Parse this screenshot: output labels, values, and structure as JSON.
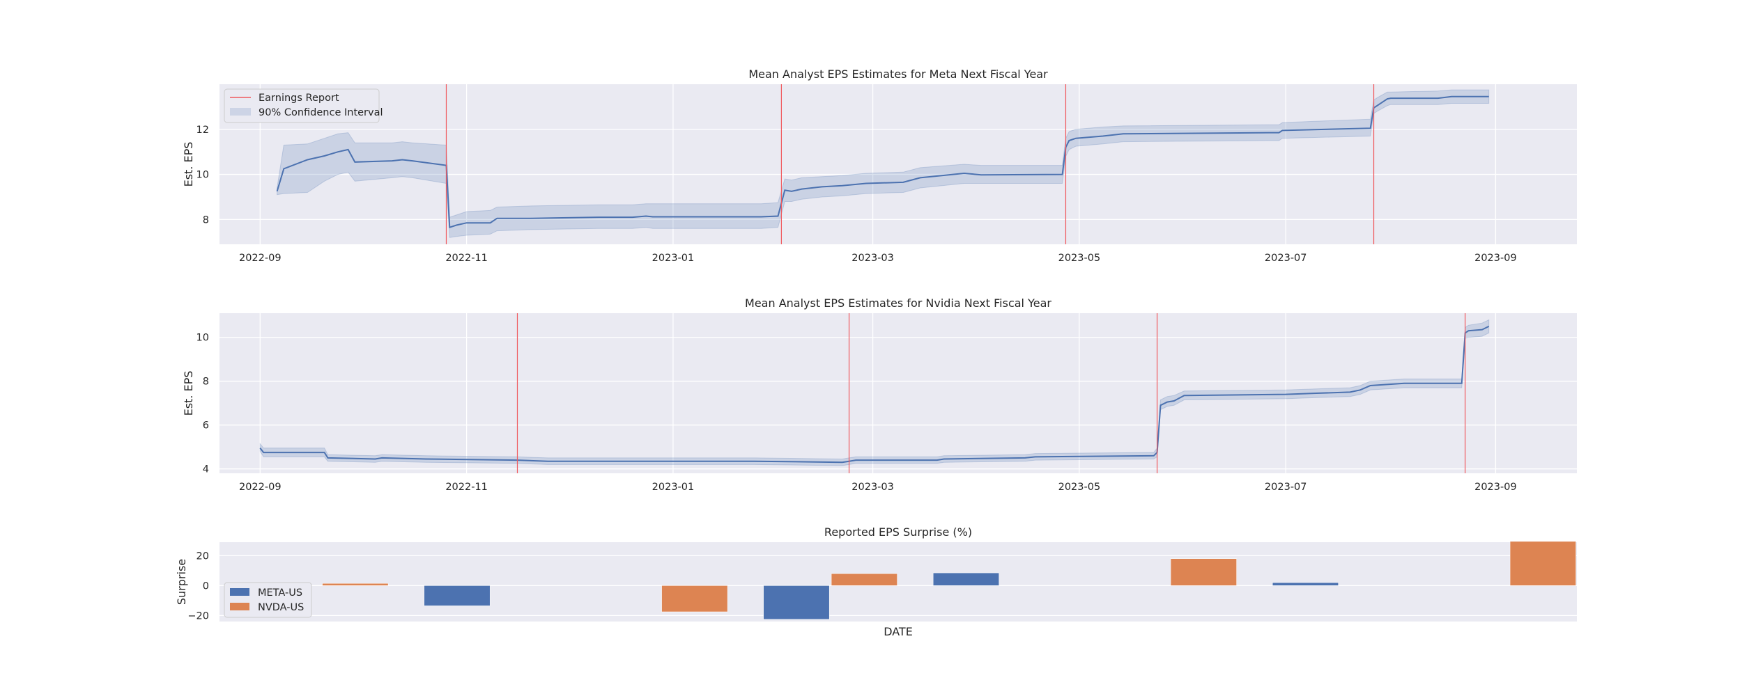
{
  "chart_data": [
    {
      "type": "line",
      "title": "Mean Analyst EPS Estimates for Meta Next Fiscal Year",
      "ylabel": "Est. EPS",
      "xlabel": "",
      "xlim": [
        "2022-08-20",
        "2023-09-25"
      ],
      "ylim": [
        6.9,
        14.0
      ],
      "x_ticks": [
        "2022-09",
        "2022-11",
        "2023-01",
        "2023-03",
        "2023-05",
        "2023-07",
        "2023-09"
      ],
      "y_ticks": [
        8,
        10,
        12
      ],
      "grid": true,
      "legend": {
        "placement": "top-left",
        "entries": [
          "Earnings Report",
          "90% Confidence Interval"
        ]
      },
      "earnings_reports": [
        "2022-10-26",
        "2023-02-02",
        "2023-04-27",
        "2023-07-27"
      ],
      "series": [
        {
          "name": "Mean EPS",
          "color": "#4c72b0",
          "x": [
            "2022-09-06",
            "2022-09-08",
            "2022-09-15",
            "2022-09-20",
            "2022-09-24",
            "2022-09-27",
            "2022-09-29",
            "2022-10-10",
            "2022-10-13",
            "2022-10-16",
            "2022-10-26",
            "2022-10-27",
            "2022-10-29",
            "2022-11-01",
            "2022-11-08",
            "2022-11-10",
            "2022-11-20",
            "2022-12-10",
            "2022-12-20",
            "2022-12-24",
            "2022-12-26",
            "2023-01-20",
            "2023-01-27",
            "2023-02-01",
            "2023-02-03",
            "2023-02-05",
            "2023-02-08",
            "2023-02-14",
            "2023-02-20",
            "2023-02-27",
            "2023-03-10",
            "2023-03-15",
            "2023-03-28",
            "2023-04-02",
            "2023-04-26",
            "2023-04-27",
            "2023-04-28",
            "2023-04-30",
            "2023-05-08",
            "2023-05-14",
            "2023-06-26",
            "2023-06-29",
            "2023-06-30",
            "2023-07-26",
            "2023-07-27",
            "2023-07-28",
            "2023-07-31",
            "2023-08-01",
            "2023-08-15",
            "2023-08-19",
            "2023-08-30"
          ],
          "values": [
            9.25,
            10.25,
            10.65,
            10.82,
            11.0,
            11.1,
            10.55,
            10.6,
            10.65,
            10.6,
            10.4,
            7.65,
            7.75,
            7.85,
            7.85,
            8.05,
            8.05,
            8.1,
            8.1,
            8.15,
            8.12,
            8.12,
            8.12,
            8.15,
            9.3,
            9.25,
            9.35,
            9.45,
            9.5,
            9.6,
            9.65,
            9.85,
            10.05,
            9.98,
            10.0,
            11.2,
            11.5,
            11.6,
            11.7,
            11.8,
            11.85,
            11.85,
            11.95,
            12.05,
            12.95,
            13.05,
            13.35,
            13.38,
            13.38,
            13.45,
            13.45
          ],
          "ci_lower": [
            9.1,
            9.15,
            9.2,
            9.7,
            10.0,
            10.1,
            9.7,
            9.85,
            9.9,
            9.85,
            9.6,
            7.2,
            7.25,
            7.3,
            7.35,
            7.5,
            7.55,
            7.6,
            7.6,
            7.65,
            7.6,
            7.6,
            7.6,
            7.65,
            8.8,
            8.8,
            8.9,
            9.0,
            9.05,
            9.15,
            9.2,
            9.4,
            9.6,
            9.6,
            9.6,
            10.8,
            11.1,
            11.25,
            11.35,
            11.45,
            11.5,
            11.5,
            11.6,
            11.7,
            12.7,
            12.8,
            13.05,
            13.1,
            13.1,
            13.15,
            13.15
          ],
          "ci_upper": [
            9.4,
            11.3,
            11.35,
            11.6,
            11.8,
            11.85,
            11.4,
            11.4,
            11.45,
            11.4,
            11.3,
            8.1,
            8.2,
            8.35,
            8.4,
            8.55,
            8.6,
            8.65,
            8.65,
            8.7,
            8.7,
            8.7,
            8.7,
            8.75,
            9.8,
            9.75,
            9.85,
            9.9,
            9.95,
            10.05,
            10.1,
            10.3,
            10.45,
            10.4,
            10.4,
            11.6,
            11.9,
            12.0,
            12.1,
            12.15,
            12.2,
            12.2,
            12.3,
            12.45,
            13.3,
            13.4,
            13.65,
            13.65,
            13.7,
            13.75,
            13.75
          ]
        }
      ]
    },
    {
      "type": "line",
      "title": "Mean Analyst EPS Estimates for Nvidia Next Fiscal Year",
      "ylabel": "Est. EPS",
      "xlabel": "",
      "xlim": [
        "2022-08-20",
        "2023-09-25"
      ],
      "ylim": [
        3.8,
        11.1
      ],
      "x_ticks": [
        "2022-09",
        "2022-11",
        "2023-01",
        "2023-03",
        "2023-05",
        "2023-07",
        "2023-09"
      ],
      "y_ticks": [
        4,
        6,
        8,
        10
      ],
      "grid": true,
      "earnings_reports": [
        "2022-11-16",
        "2023-02-22",
        "2023-05-24",
        "2023-08-23"
      ],
      "series": [
        {
          "name": "Mean EPS",
          "color": "#4c72b0",
          "x": [
            "2022-09-01",
            "2022-09-02",
            "2022-09-20",
            "2022-09-21",
            "2022-10-05",
            "2022-10-07",
            "2022-10-20",
            "2022-11-16",
            "2022-11-25",
            "2023-01-25",
            "2023-02-20",
            "2023-02-22",
            "2023-02-24",
            "2023-03-20",
            "2023-03-22",
            "2023-04-15",
            "2023-04-18",
            "2023-05-23",
            "2023-05-24",
            "2023-05-25",
            "2023-05-27",
            "2023-05-29",
            "2023-06-01",
            "2023-07-01",
            "2023-07-10",
            "2023-07-20",
            "2023-07-23",
            "2023-07-26",
            "2023-08-05",
            "2023-08-22",
            "2023-08-23",
            "2023-08-24",
            "2023-08-28",
            "2023-08-30"
          ],
          "values": [
            4.95,
            4.75,
            4.75,
            4.5,
            4.45,
            4.5,
            4.45,
            4.4,
            4.35,
            4.35,
            4.3,
            4.35,
            4.4,
            4.4,
            4.45,
            4.5,
            4.55,
            4.6,
            4.75,
            6.9,
            7.05,
            7.1,
            7.35,
            7.4,
            7.45,
            7.5,
            7.6,
            7.8,
            7.9,
            7.9,
            10.2,
            10.3,
            10.35,
            10.5
          ],
          "ci_lower": [
            4.8,
            4.55,
            4.55,
            4.35,
            4.3,
            4.35,
            4.3,
            4.25,
            4.2,
            4.2,
            4.15,
            4.2,
            4.25,
            4.25,
            4.3,
            4.35,
            4.4,
            4.45,
            4.55,
            6.7,
            6.85,
            6.9,
            7.15,
            7.2,
            7.25,
            7.3,
            7.4,
            7.6,
            7.7,
            7.7,
            9.95,
            10.0,
            10.05,
            10.2
          ],
          "ci_upper": [
            5.15,
            4.95,
            4.95,
            4.65,
            4.6,
            4.65,
            4.6,
            4.55,
            4.5,
            4.5,
            4.45,
            4.5,
            4.55,
            4.55,
            4.6,
            4.65,
            4.7,
            4.75,
            4.95,
            7.15,
            7.3,
            7.35,
            7.55,
            7.6,
            7.65,
            7.7,
            7.8,
            8.0,
            8.1,
            8.1,
            10.45,
            10.55,
            10.65,
            10.8
          ]
        }
      ]
    },
    {
      "type": "bar",
      "title": "Reported EPS Surprise (%)",
      "ylabel": "Surprise",
      "xlabel": "DATE",
      "ylim": [
        -24,
        29
      ],
      "y_ticks": [
        -20,
        0,
        20
      ],
      "grid": true,
      "legend": {
        "placement": "lower-left",
        "entries": [
          "META-US",
          "NVDA-US"
        ]
      },
      "bars": [
        {
          "series": "NVDA-US",
          "value": 1.5,
          "color": "#dd8452"
        },
        {
          "series": "META-US",
          "value": -13.5,
          "color": "#4c72b0"
        },
        {
          "series": "NVDA-US",
          "value": -17.5,
          "color": "#dd8452"
        },
        {
          "series": "META-US",
          "value": -22.5,
          "color": "#4c72b0"
        },
        {
          "series": "NVDA-US",
          "value": 8.0,
          "color": "#dd8452"
        },
        {
          "series": "META-US",
          "value": 8.5,
          "color": "#4c72b0"
        },
        {
          "series": "NVDA-US",
          "value": 18.0,
          "color": "#dd8452"
        },
        {
          "series": "META-US",
          "value": 2.0,
          "color": "#4c72b0"
        },
        {
          "series": "NVDA-US",
          "value": 29.5,
          "color": "#dd8452"
        }
      ],
      "bar_slots": [
        1.5,
        3,
        6.5,
        8,
        9,
        10.5,
        14,
        15.5,
        19
      ]
    }
  ],
  "colors": {
    "axes_bg": "#eaeaf2",
    "grid": "#ffffff",
    "line": "#4c72b0",
    "band": "#4c72b0",
    "earnings": "#f0595e",
    "meta": "#4c72b0",
    "nvda": "#dd8452"
  }
}
